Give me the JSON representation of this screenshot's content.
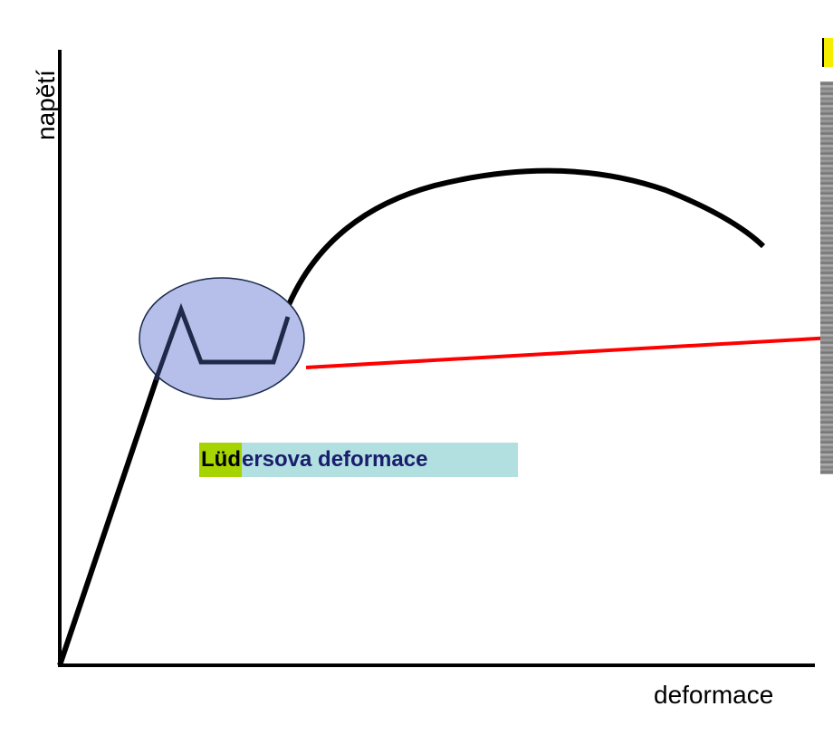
{
  "axes": {
    "y_label": "napětí",
    "x_label": "deformace"
  },
  "annotation": {
    "highlight_text": "Lüd",
    "rest_text": "ersova deformace"
  },
  "colors": {
    "curve": "#000000",
    "ellipse_fill": "#b6bfea",
    "ellipse_stroke": "#1a2a4a",
    "plateau_line": "#1f2a4a",
    "pointer_line": "#ff0000",
    "label_bg": "#b2dfe0",
    "label_highlight": "#a6d400",
    "corner_tag": "#f5ee00"
  }
}
